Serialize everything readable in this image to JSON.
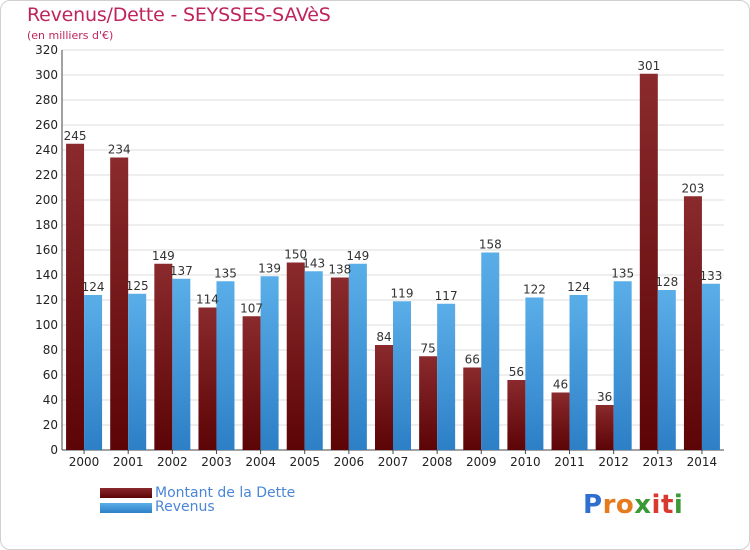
{
  "title": "Revenus/Dette - SEYSSES-SAVèS",
  "subtitle": "(en milliers d'€)",
  "logo": {
    "letters": [
      "P",
      "r",
      "o",
      "x",
      "i",
      "t",
      "i"
    ],
    "colors": [
      "#2e6fd0",
      "#e57a1e",
      "#e57a1e",
      "#3b9a35",
      "#d93a2f",
      "#d93a2f",
      "#3b9a35"
    ]
  },
  "legend": [
    {
      "label": "Montant de la Dette",
      "color": "#7a1416"
    },
    {
      "label": "Revenus",
      "color": "#3d97dc"
    }
  ],
  "chart_data": {
    "type": "bar",
    "categories": [
      "2000",
      "2001",
      "2002",
      "2003",
      "2004",
      "2005",
      "2006",
      "2007",
      "2008",
      "2009",
      "2010",
      "2011",
      "2012",
      "2013",
      "2014"
    ],
    "series": [
      {
        "name": "Montant de la Dette",
        "color": "#7a1416",
        "values": [
          245,
          234,
          149,
          114,
          107,
          150,
          138,
          84,
          75,
          66,
          56,
          46,
          36,
          301,
          203
        ]
      },
      {
        "name": "Revenus",
        "color": "#3d97dc",
        "values": [
          124,
          125,
          137,
          135,
          139,
          143,
          149,
          119,
          117,
          158,
          122,
          124,
          135,
          128,
          133
        ]
      }
    ],
    "ylim": [
      0,
      320
    ],
    "yticks": [
      0,
      20,
      40,
      60,
      80,
      100,
      120,
      140,
      160,
      180,
      200,
      220,
      240,
      260,
      280,
      300,
      320
    ],
    "grid": true
  }
}
